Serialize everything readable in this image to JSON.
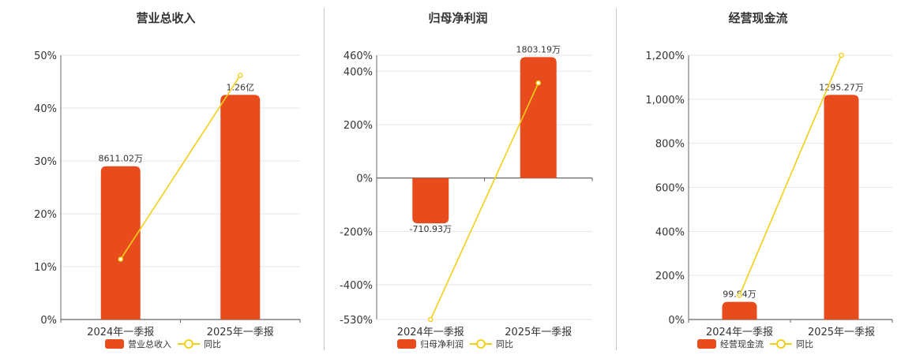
{
  "colors": {
    "bar": "#e84c1c",
    "line": "#f2cf17",
    "grid": "#e6e6e6",
    "axis": "#666666",
    "divider": "#c8c8c8"
  },
  "legend": {
    "line_name": "同比"
  },
  "chart_data": [
    {
      "type": "bar",
      "title": "营业总收入",
      "categories": [
        "2024年一季报",
        "2025年一季报"
      ],
      "series": [
        {
          "name": "营业总收入",
          "axis": "left",
          "values": [
            29,
            42.5
          ],
          "labels": [
            "8611.02万",
            "1.26亿"
          ]
        },
        {
          "name": "同比",
          "type": "line",
          "values": [
            11.4,
            46.2
          ]
        }
      ],
      "yaxis": {
        "min": 0,
        "max": 50,
        "ticks": [
          0,
          10,
          20,
          30,
          40,
          50
        ],
        "tick_labels": [
          "0%",
          "10%",
          "20%",
          "30%",
          "40%",
          "50%"
        ]
      },
      "grid": true,
      "legend_position": "bottom"
    },
    {
      "type": "bar",
      "title": "归母净利润",
      "categories": [
        "2024年一季报",
        "2025年一季报"
      ],
      "series": [
        {
          "name": "归母净利润",
          "values": [
            -170,
            453
          ],
          "labels": [
            "-710.93万",
            "1803.19万"
          ]
        },
        {
          "name": "同比",
          "type": "line",
          "values": [
            -530,
            356
          ]
        }
      ],
      "yaxis": {
        "min": -530,
        "max": 460,
        "ticks": [
          -530,
          -400,
          -200,
          0,
          200,
          400,
          460
        ],
        "tick_labels": [
          "-530%",
          "-400%",
          "-200%",
          "0%",
          "200%",
          "400%",
          "460%"
        ]
      },
      "grid": true,
      "legend_position": "bottom"
    },
    {
      "type": "bar",
      "title": "经营现金流",
      "categories": [
        "2024年一季报",
        "2025年一季报"
      ],
      "series": [
        {
          "name": "经营现金流",
          "values": [
            80,
            1020
          ],
          "labels": [
            "99.84万",
            "1295.27万"
          ]
        },
        {
          "name": "同比",
          "type": "line",
          "values": [
            110,
            1200
          ]
        }
      ],
      "yaxis": {
        "min": 0,
        "max": 1200,
        "ticks": [
          0,
          200,
          400,
          600,
          800,
          1000,
          1200
        ],
        "tick_labels": [
          "0%",
          "200%",
          "400%",
          "600%",
          "800%",
          "1,000%",
          "1,200%"
        ]
      },
      "grid": true,
      "legend_position": "bottom"
    }
  ]
}
